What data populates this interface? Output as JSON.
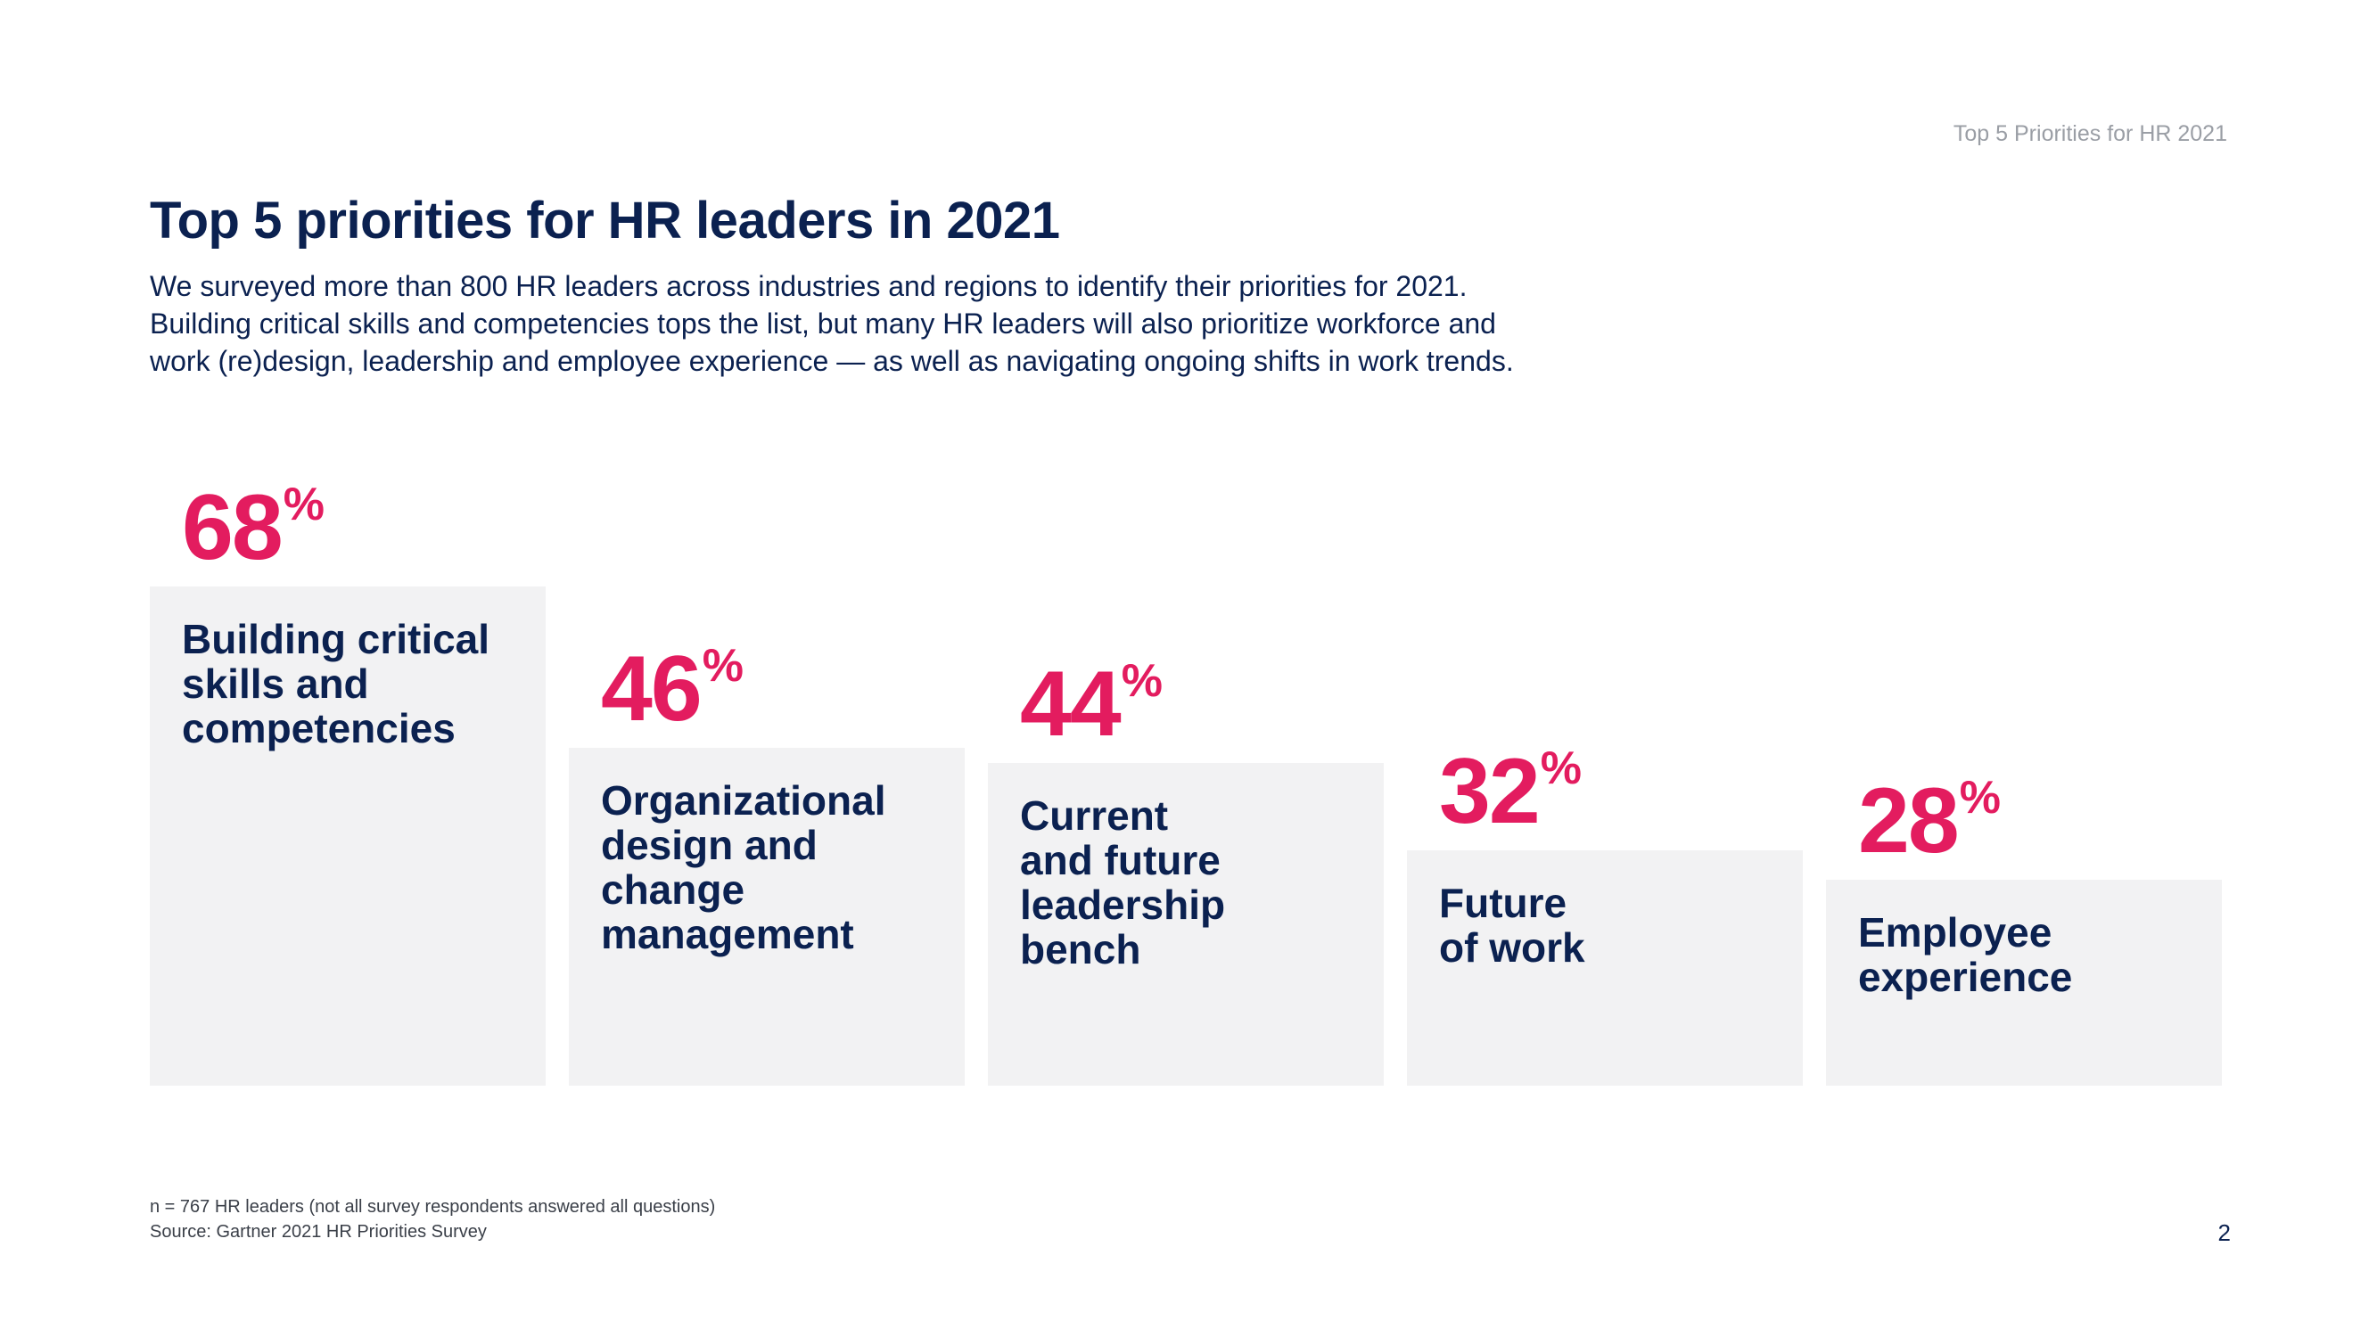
{
  "header": {
    "tag": "Top 5 Priorities for HR 2021",
    "title": "Top 5 priorities for HR leaders in 2021",
    "intro": [
      "We surveyed more than 800 HR leaders across industries and regions to identify their priorities for 2021.",
      "Building critical skills and competencies tops the list, but many HR leaders will also prioritize workforce and",
      "work (re)design, leadership and employee experience — as well as navigating ongoing shifts in work trends."
    ]
  },
  "chart_data": {
    "type": "bar",
    "title": "",
    "xlabel": "",
    "ylabel": "",
    "ylim": [
      0,
      68
    ],
    "unit": "%",
    "categories": [
      "Building critical skills and competencies",
      "Organizational design and change management",
      "Current and future leadership bench",
      "Future of work",
      "Employee experience"
    ],
    "category_lines": [
      [
        "Building critical",
        "skills and",
        "competencies"
      ],
      [
        "Organizational",
        "design and",
        "change",
        "management"
      ],
      [
        "Current",
        "and future",
        "leadership",
        "bench"
      ],
      [
        "Future",
        "of work"
      ],
      [
        "Employee",
        "experience"
      ]
    ],
    "values": [
      68,
      46,
      44,
      32,
      28
    ],
    "value_labels": [
      "68",
      "46",
      "44",
      "32",
      "28"
    ],
    "colors": {
      "value": "#e31c5f",
      "bar": "#f2f2f3",
      "text": "#0b2150"
    },
    "grid": false,
    "legend": "none"
  },
  "footer": {
    "note": "n = 767 HR leaders (not all survey respondents answered all questions)",
    "source": "Source: Gartner 2021 HR Priorities Survey",
    "page_number": "2"
  }
}
